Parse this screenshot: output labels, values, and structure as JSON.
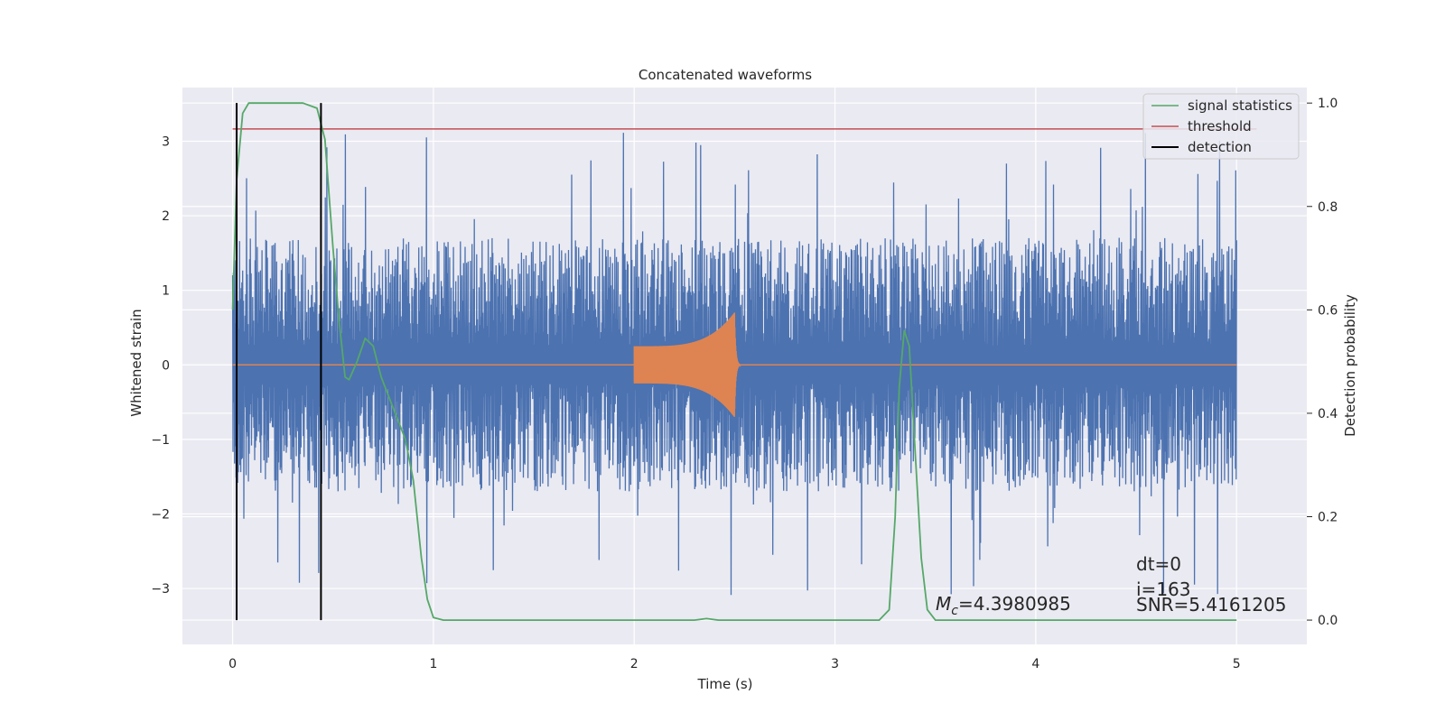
{
  "chart_data": {
    "type": "line",
    "title": "Concatenated waveforms",
    "xlabel": "Time (s)",
    "ylabel": "Whitened strain",
    "y2label": "Detection probability",
    "xlim": [
      -0.25,
      5.35
    ],
    "ylim": [
      -3.75,
      3.72
    ],
    "y2lim": [
      -0.047,
      1.03
    ],
    "xticks": [
      0,
      1,
      2,
      3,
      4,
      5
    ],
    "yticks": [
      -3,
      -2,
      -1,
      0,
      1,
      2,
      3
    ],
    "y2ticks": [
      0.0,
      0.2,
      0.4,
      0.6,
      0.8,
      1.0
    ],
    "xtick_labels": [
      "0",
      "1",
      "2",
      "3",
      "4",
      "5"
    ],
    "ytick_labels": [
      "−3",
      "−2",
      "−1",
      "0",
      "1",
      "2",
      "3"
    ],
    "y2tick_labels": [
      "0.0",
      "0.2",
      "0.4",
      "0.6",
      "0.8",
      "1.0"
    ],
    "grid": true,
    "legend_position": "top-right",
    "series": [
      {
        "name": "",
        "axis": "left",
        "color": "#4c72b0",
        "kind": "noise",
        "x_range": [
          0,
          5
        ],
        "envelope_typical": 1.7,
        "envelope_peak": 3.15
      },
      {
        "name": "",
        "axis": "left",
        "color": "#dd8452",
        "kind": "chirp",
        "x_range": [
          2.0,
          2.5
        ],
        "amplitude_start": 0.25,
        "amplitude_peak": 0.7,
        "zero_elsewhere": true
      },
      {
        "name": "signal statistics",
        "axis": "right",
        "color": "#55a868",
        "points": [
          [
            0.0,
            0.6
          ],
          [
            0.02,
            0.85
          ],
          [
            0.05,
            0.98
          ],
          [
            0.08,
            1.0
          ],
          [
            0.15,
            1.0
          ],
          [
            0.35,
            1.0
          ],
          [
            0.42,
            0.99
          ],
          [
            0.46,
            0.93
          ],
          [
            0.5,
            0.72
          ],
          [
            0.53,
            0.58
          ],
          [
            0.56,
            0.47
          ],
          [
            0.58,
            0.465
          ],
          [
            0.62,
            0.5
          ],
          [
            0.66,
            0.545
          ],
          [
            0.7,
            0.53
          ],
          [
            0.74,
            0.47
          ],
          [
            0.8,
            0.41
          ],
          [
            0.86,
            0.35
          ],
          [
            0.9,
            0.27
          ],
          [
            0.94,
            0.12
          ],
          [
            0.97,
            0.04
          ],
          [
            1.0,
            0.005
          ],
          [
            1.05,
            0.0
          ],
          [
            2.3,
            0.0
          ],
          [
            2.36,
            0.003
          ],
          [
            2.42,
            0.0
          ],
          [
            3.22,
            0.0
          ],
          [
            3.27,
            0.02
          ],
          [
            3.3,
            0.2
          ],
          [
            3.32,
            0.45
          ],
          [
            3.345,
            0.56
          ],
          [
            3.37,
            0.53
          ],
          [
            3.4,
            0.32
          ],
          [
            3.43,
            0.12
          ],
          [
            3.46,
            0.02
          ],
          [
            3.5,
            0.0
          ],
          [
            5.0,
            0.0
          ]
        ]
      },
      {
        "name": "threshold",
        "axis": "right",
        "color": "#c44e52",
        "points": [
          [
            0.0,
            0.95
          ],
          [
            5.1,
            0.95
          ]
        ]
      },
      {
        "name": "detection",
        "axis": "right",
        "color": "#000000",
        "vertical_lines": [
          0.02,
          0.44
        ],
        "span": [
          0.0,
          1.0
        ]
      }
    ],
    "annotations": {
      "mc_symbol": "M",
      "mc_subscript": "c",
      "mc_value": "=4.3980985",
      "dt": "dt=0",
      "i": "i=163",
      "snr": "SNR=5.4161205"
    },
    "colors": {
      "plot_background": "#eaeaf2",
      "grid": "#ffffff"
    }
  }
}
